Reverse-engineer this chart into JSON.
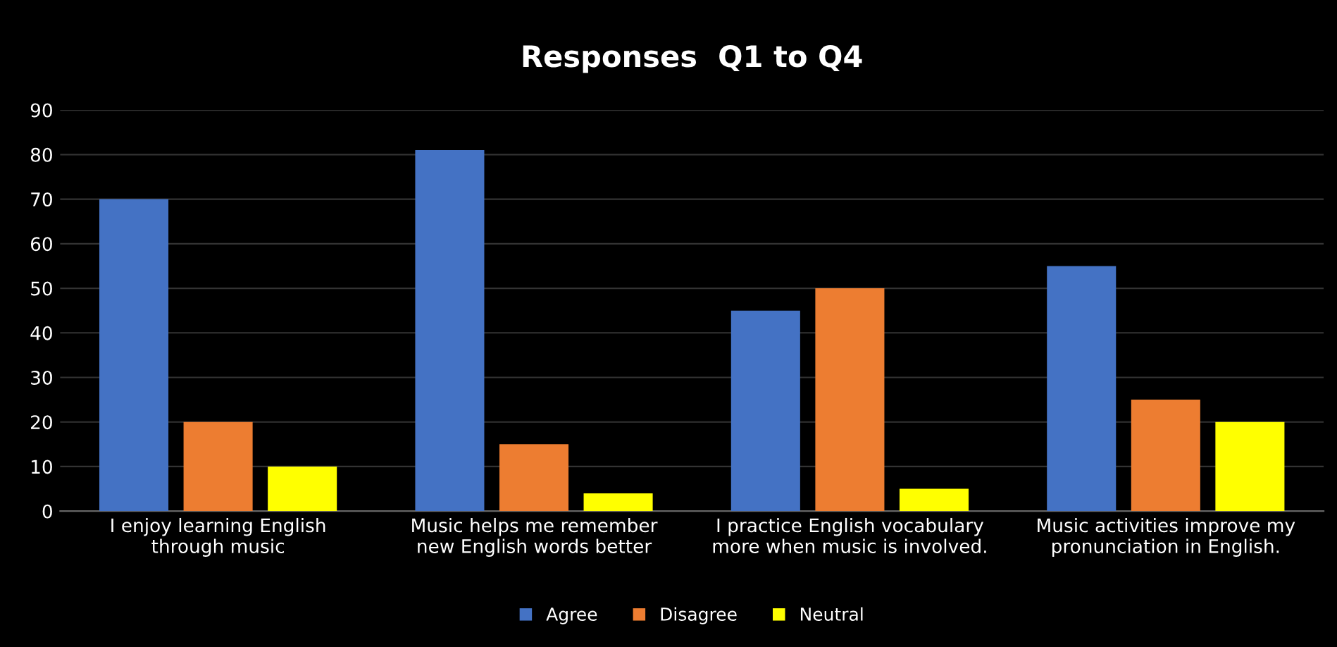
{
  "chart_data": {
    "type": "bar",
    "title": "Responses  Q1 to Q4",
    "categories": [
      "I enjoy learning English\nthrough music",
      "Music helps me remember\nnew English words better",
      "I practice English vocabulary\nmore when music is involved.",
      "Music activities improve my\npronunciation in English."
    ],
    "series": [
      {
        "name": "Agree",
        "color": "#4472c4",
        "values": [
          70,
          81,
          45,
          55
        ]
      },
      {
        "name": "Disagree",
        "color": "#ed7d31",
        "values": [
          20,
          15,
          50,
          25
        ]
      },
      {
        "name": "Neutral",
        "color": "#ffff00",
        "values": [
          10,
          4,
          5,
          20
        ]
      }
    ],
    "ylim": [
      0,
      90
    ],
    "yticks": [
      0,
      10,
      20,
      30,
      40,
      50,
      60,
      70,
      80,
      90
    ],
    "grid": "y",
    "legend": "bottom"
  }
}
